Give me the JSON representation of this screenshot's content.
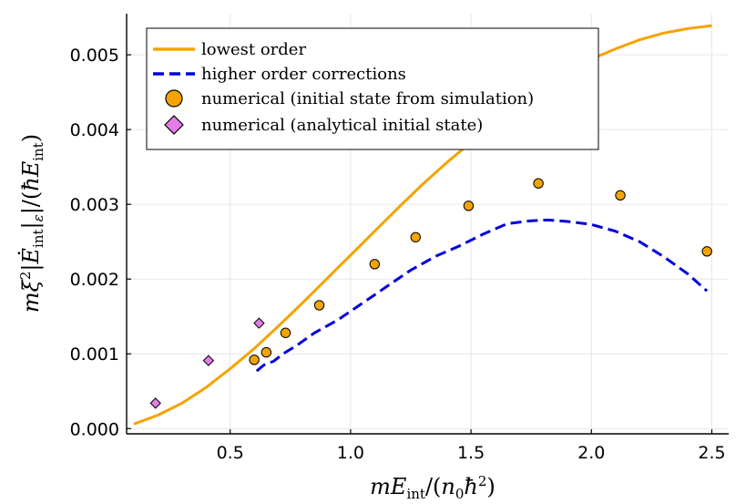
{
  "chart_data": {
    "type": "line",
    "xlabel": "mE_int/(n_0ħ^2)",
    "ylabel": "mξ^2|Ė_int|_ε|/(ħE_int)",
    "xlim": [
      0.07,
      2.57
    ],
    "ylim": [
      -7e-05,
      0.00555
    ],
    "grid": true,
    "legend_position": "top-left",
    "x_ticks": [
      {
        "value": 0.5,
        "label": "0.5"
      },
      {
        "value": 1.0,
        "label": "1.0"
      },
      {
        "value": 1.5,
        "label": "1.5"
      },
      {
        "value": 2.0,
        "label": "2.0"
      },
      {
        "value": 2.5,
        "label": "2.5"
      }
    ],
    "y_ticks": [
      {
        "value": 0.0,
        "label": "0.000"
      },
      {
        "value": 0.001,
        "label": "0.001"
      },
      {
        "value": 0.002,
        "label": "0.002"
      },
      {
        "value": 0.003,
        "label": "0.003"
      },
      {
        "value": 0.004,
        "label": "0.004"
      },
      {
        "value": 0.005,
        "label": "0.005"
      }
    ],
    "series": [
      {
        "name": "lowest order",
        "kind": "line",
        "color": "#f5a300",
        "dash": "solid",
        "x": [
          0.1,
          0.2,
          0.3,
          0.4,
          0.5,
          0.6,
          0.7,
          0.8,
          0.9,
          1.0,
          1.1,
          1.2,
          1.3,
          1.4,
          1.5,
          1.6,
          1.7,
          1.8,
          1.9,
          2.0,
          2.1,
          2.2,
          2.3,
          2.4,
          2.5
        ],
        "y": [
          6e-05,
          0.00018,
          0.00034,
          0.00055,
          0.0008,
          0.00107,
          0.00137,
          0.00168,
          0.002,
          0.00232,
          0.00264,
          0.00296,
          0.00327,
          0.00356,
          0.00383,
          0.0041,
          0.00435,
          0.00458,
          0.00478,
          0.00494,
          0.00508,
          0.0052,
          0.00529,
          0.00535,
          0.00539
        ]
      },
      {
        "name": "higher order corrections",
        "kind": "line",
        "color": "#0000dd",
        "dash": "dashed",
        "x": [
          0.61,
          0.64,
          0.68,
          0.72,
          0.78,
          0.85,
          0.95,
          1.05,
          1.15,
          1.25,
          1.35,
          1.45,
          1.55,
          1.65,
          1.75,
          1.82,
          1.9,
          2.0,
          2.1,
          2.2,
          2.3,
          2.4,
          2.48
        ],
        "y": [
          0.00077,
          0.00085,
          0.0009,
          0.001,
          0.00112,
          0.00128,
          0.00146,
          0.00168,
          0.0019,
          0.00212,
          0.0023,
          0.00244,
          0.0026,
          0.00274,
          0.00278,
          0.00279,
          0.00277,
          0.00273,
          0.00264,
          0.0025,
          0.0023,
          0.00207,
          0.00184
        ]
      },
      {
        "name": "numerical (initial state from simulation)",
        "kind": "scatter",
        "marker": "circle",
        "color": "#f5a300",
        "x": [
          0.6,
          0.65,
          0.73,
          0.87,
          1.1,
          1.27,
          1.49,
          1.78,
          2.12,
          2.48
        ],
        "y": [
          0.00092,
          0.00102,
          0.00128,
          0.00165,
          0.0022,
          0.00256,
          0.00298,
          0.00328,
          0.00312,
          0.00237
        ]
      },
      {
        "name": "numerical (analytical initial state)",
        "kind": "scatter",
        "marker": "diamond",
        "color": "#e27ee8",
        "x": [
          0.19,
          0.41,
          0.62
        ],
        "y": [
          0.00034,
          0.00091,
          0.00141
        ]
      }
    ]
  }
}
